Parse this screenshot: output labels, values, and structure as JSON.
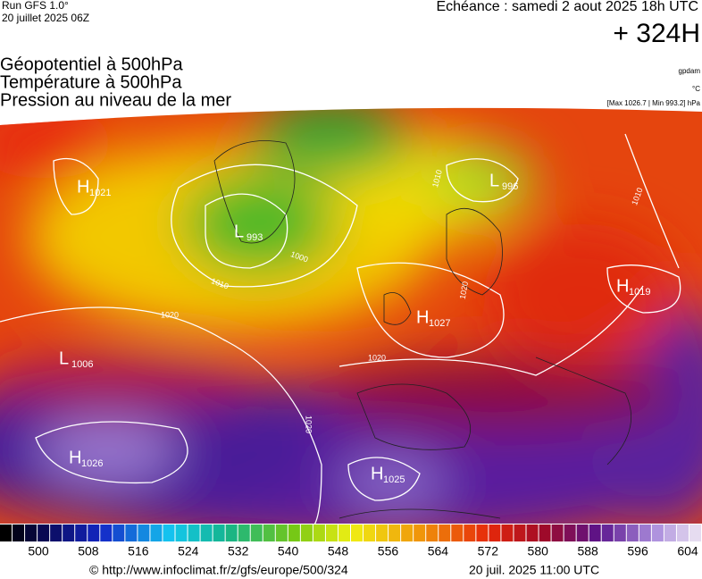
{
  "header": {
    "run": "Run GFS 1.0°",
    "run_date": "20 juillet 2025 06Z",
    "forecast": "Echéance : samedi 2 aout 2025 18h UTC",
    "lead": "+ 324H",
    "fields": [
      "Géopotentiel à 500hPa",
      "Température à 500hPa",
      "Pression au niveau de la mer"
    ],
    "units": [
      "gpdam",
      "°C"
    ],
    "range": "[Max 1026.7 | Min 993.2] hPa"
  },
  "map": {
    "centers": [
      {
        "letter": "H",
        "value": "1021"
      },
      {
        "letter": "L",
        "value": "993"
      },
      {
        "letter": "L",
        "value": "996"
      },
      {
        "letter": "H",
        "value": "1027"
      },
      {
        "letter": "H",
        "value": "1019"
      },
      {
        "letter": "L",
        "value": "1006"
      },
      {
        "letter": "H",
        "value": "1026"
      },
      {
        "letter": "H",
        "value": "1025"
      }
    ],
    "isobar_labels": [
      "1010",
      "1010",
      "1020",
      "1020",
      "1020",
      "1010",
      "1000",
      "1020"
    ]
  },
  "colorbar": {
    "ticks": [
      500,
      508,
      516,
      524,
      532,
      540,
      548,
      556,
      564,
      572,
      580,
      588,
      596,
      604
    ]
  },
  "footer": {
    "source": "© http://www.infoclimat.fr/z/gfs/europe/500/324",
    "generated": "20 juil. 2025 11:00 UTC"
  }
}
